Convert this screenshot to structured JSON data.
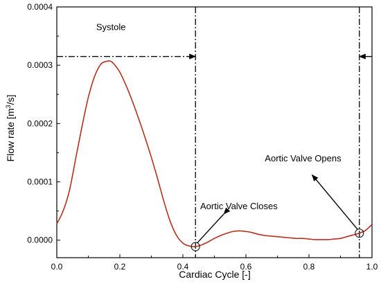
{
  "chart_data": {
    "type": "line",
    "xlabel": "Cardiac Cycle [-]",
    "ylabel_main": "Flow rate [m",
    "ylabel_sup": "3",
    "ylabel_end": "/s]",
    "xlim": [
      0.0,
      1.0
    ],
    "ylim": [
      -3e-05,
      0.0004
    ],
    "x_ticks": [
      0.0,
      0.2,
      0.4,
      0.6,
      0.8,
      1.0
    ],
    "x_tick_labels": [
      "0.0",
      "0.2",
      "0.4",
      "0.6",
      "0.8",
      "1.0"
    ],
    "y_ticks": [
      0.0,
      0.0001,
      0.0002,
      0.0003,
      0.0004
    ],
    "y_tick_labels": [
      "0.0000",
      "0.0001",
      "0.0002",
      "0.0003",
      "0.0004"
    ],
    "grid": false,
    "legend": "none",
    "line_color": "#b5301a",
    "series": [
      {
        "x": [
          0.0,
          0.02,
          0.04,
          0.06,
          0.08,
          0.1,
          0.12,
          0.14,
          0.16,
          0.17,
          0.18,
          0.2,
          0.22,
          0.24,
          0.26,
          0.28,
          0.3,
          0.32,
          0.34,
          0.36,
          0.38,
          0.4,
          0.42,
          0.44,
          0.46,
          0.48,
          0.5,
          0.52,
          0.54,
          0.56,
          0.58,
          0.6,
          0.62,
          0.64,
          0.66,
          0.68,
          0.7,
          0.72,
          0.74,
          0.76,
          0.78,
          0.8,
          0.82,
          0.84,
          0.86,
          0.88,
          0.9,
          0.92,
          0.94,
          0.96,
          0.98,
          1.0
        ],
        "y": [
          2.8e-05,
          5e-05,
          8.5e-05,
          0.00014,
          0.000195,
          0.000245,
          0.000281,
          0.000302,
          0.000307,
          0.000307,
          0.000303,
          0.000288,
          0.000265,
          0.000238,
          0.000208,
          0.000176,
          0.000142,
          0.000105,
          6.6e-05,
          3.2e-05,
          8e-06,
          -5e-06,
          -1e-05,
          -1.1e-05,
          -8e-06,
          -3e-06,
          3e-06,
          8e-06,
          1.2e-05,
          1.5e-05,
          1.6e-05,
          1.5e-05,
          1.3e-05,
          1e-05,
          8e-06,
          7e-06,
          6e-06,
          5e-06,
          4e-06,
          3e-06,
          3e-06,
          2e-06,
          1e-06,
          1e-06,
          1e-06,
          2e-06,
          3e-06,
          6e-06,
          9e-06,
          1.2e-05,
          1.7e-05,
          2.7e-05
        ]
      }
    ],
    "vlines": [
      0.44,
      0.96
    ],
    "systole_arrow_y": 0.000315,
    "markers": [
      {
        "x": 0.44,
        "y": -1.1e-05
      },
      {
        "x": 0.96,
        "y": 1.2e-05
      }
    ],
    "annotations": {
      "systole": {
        "text": "Systole",
        "x": 0.125,
        "y": 0.00036
      },
      "closes": {
        "text": "Aortic Valve Closes",
        "x": 0.455,
        "y": 5.3e-05,
        "tail_x": 0.53,
        "tail_y": 4.5e-05,
        "head_x": 0.445,
        "head_y": -5e-06
      },
      "opens": {
        "text": "Aortic Valve Opens",
        "x": 0.66,
        "y": 0.000135,
        "tail_x": 0.81,
        "tail_y": 0.000112,
        "head_x": 0.955,
        "head_y": 1.8e-05
      }
    }
  }
}
